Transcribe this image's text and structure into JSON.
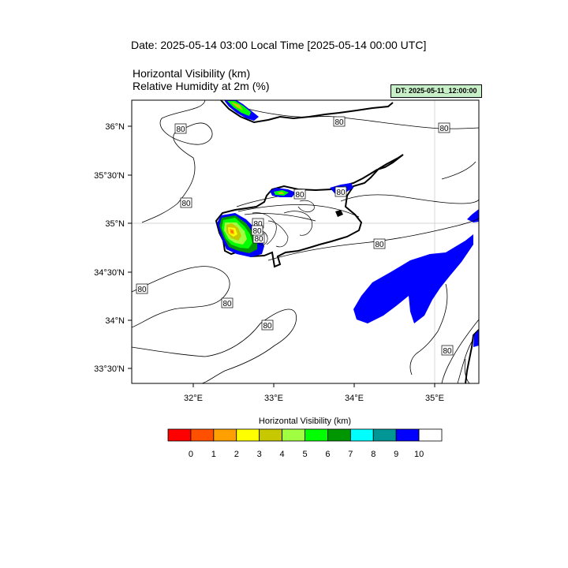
{
  "header": {
    "title": "Date: 2025-05-14  03:00 Local Time [2025-05-14  00:00 UTC]",
    "field1": "Horizontal Visibility   (km)",
    "field2": "Relative Humidity at 2m   (%)",
    "dt_badge": "DT: 2025-05-11_12:00:00"
  },
  "map": {
    "region": "Cyprus",
    "lat_labels": [
      "36°N",
      "35°30'N",
      "35°N",
      "34°30'N",
      "34°N",
      "33°30'N"
    ],
    "lon_labels": [
      "32°E",
      "33°E",
      "34°E",
      "35°E"
    ],
    "contour_labels": [
      "80",
      "80",
      "80",
      "80",
      "80",
      "80",
      "80",
      "80",
      "80",
      "80",
      "80",
      "80",
      "80",
      "80"
    ]
  },
  "colorbar": {
    "title": "Horizontal Visibility  (km)",
    "tick_labels": [
      "0",
      "1",
      "2",
      "3",
      "4",
      "5",
      "6",
      "7",
      "8",
      "9",
      "10"
    ],
    "colors": [
      "#ff0000",
      "#ff5000",
      "#ffa000",
      "#ffff00",
      "#c8c800",
      "#a0ff40",
      "#00ff00",
      "#009600",
      "#00ffff",
      "#009696",
      "#0000ff",
      "#ffffff"
    ]
  }
}
